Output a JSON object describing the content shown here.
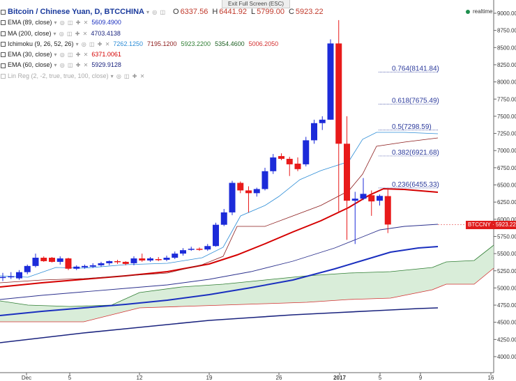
{
  "header": {
    "exit_fullscreen": "Exit Full Screen (ESC)",
    "title": "Bitcoin / Chinese Yuan, D, BTCCHINA",
    "ohlc": [
      {
        "k": "O",
        "v": "6337.56"
      },
      {
        "k": "H",
        "v": "6441.92"
      },
      {
        "k": "L",
        "v": "5799.00"
      },
      {
        "k": "C",
        "v": "5923.22"
      }
    ],
    "realtime": "realtime"
  },
  "indicators": [
    {
      "name": "EMA (89, close)",
      "values": [
        "5609.4900"
      ],
      "colors": [
        "#1a2fbf"
      ]
    },
    {
      "name": "MA (200, close)",
      "values": [
        "4703.4138"
      ],
      "colors": [
        "#1a237e"
      ]
    },
    {
      "name": "Ichimoku (9, 26, 52, 26)",
      "values": [
        "7262.1250",
        "7195.1200",
        "5923.2200",
        "5354.4600",
        "5006.2050"
      ],
      "colors": [
        "#2b8cd6",
        "#8b1a1a",
        "#2e7d32",
        "#1b5e20",
        "#d32f2f"
      ]
    },
    {
      "name": "EMA (30, close)",
      "values": [
        "6371.0061"
      ],
      "colors": [
        "#d50000"
      ]
    },
    {
      "name": "EMA (60, close)",
      "values": [
        "5929.9128"
      ],
      "colors": [
        "#1a237e"
      ]
    },
    {
      "name": "Lin Reg (2, -2, true, true, 100, close)",
      "values": [],
      "colors": []
    }
  ],
  "last_price_label": "BTCCNY · 5923.22",
  "colors": {
    "up": "#1c2bd9",
    "down": "#e81a1a",
    "fib": "#2b3a9c",
    "cloud": "#cfe8cf"
  },
  "chart_data": {
    "type": "candlestick",
    "title": "Bitcoin / Chinese Yuan, D, BTCCHINA",
    "ylim": [
      3800,
      9000
    ],
    "y_ticks": [
      4000,
      4250,
      4500,
      4750,
      5000,
      5250,
      5500,
      5750,
      6000,
      6250,
      6500,
      6750,
      7000,
      7250,
      7500,
      7750,
      8000,
      8250,
      8500,
      8750,
      9000
    ],
    "x_ticks": [
      "Dec",
      "5",
      "12",
      "19",
      "26",
      "2017",
      "5",
      "9",
      "16"
    ],
    "candles": [
      {
        "o": 5150,
        "h": 5220,
        "l": 5100,
        "c": 5160
      },
      {
        "o": 5160,
        "h": 5230,
        "l": 5130,
        "c": 5170
      },
      {
        "o": 5140,
        "h": 5260,
        "l": 5120,
        "c": 5230
      },
      {
        "o": 5230,
        "h": 5340,
        "l": 5200,
        "c": 5320
      },
      {
        "o": 5320,
        "h": 5500,
        "l": 5300,
        "c": 5440
      },
      {
        "o": 5440,
        "h": 5460,
        "l": 5380,
        "c": 5390
      },
      {
        "o": 5440,
        "h": 5450,
        "l": 5370,
        "c": 5380
      },
      {
        "o": 5380,
        "h": 5460,
        "l": 5340,
        "c": 5430
      },
      {
        "o": 5430,
        "h": 5440,
        "l": 5260,
        "c": 5280
      },
      {
        "o": 5280,
        "h": 5330,
        "l": 5260,
        "c": 5310
      },
      {
        "o": 5300,
        "h": 5340,
        "l": 5280,
        "c": 5320
      },
      {
        "o": 5310,
        "h": 5360,
        "l": 5290,
        "c": 5330
      },
      {
        "o": 5330,
        "h": 5380,
        "l": 5310,
        "c": 5360
      },
      {
        "o": 5360,
        "h": 5400,
        "l": 5330,
        "c": 5390
      },
      {
        "o": 5390,
        "h": 5410,
        "l": 5350,
        "c": 5380
      },
      {
        "o": 5380,
        "h": 5390,
        "l": 5330,
        "c": 5350
      },
      {
        "o": 5360,
        "h": 5460,
        "l": 5330,
        "c": 5430
      },
      {
        "o": 5430,
        "h": 5500,
        "l": 5380,
        "c": 5400
      },
      {
        "o": 5400,
        "h": 5450,
        "l": 5380,
        "c": 5430
      },
      {
        "o": 5420,
        "h": 5450,
        "l": 5390,
        "c": 5410
      },
      {
        "o": 5410,
        "h": 5470,
        "l": 5390,
        "c": 5440
      },
      {
        "o": 5440,
        "h": 5530,
        "l": 5420,
        "c": 5500
      },
      {
        "o": 5500,
        "h": 5580,
        "l": 5470,
        "c": 5550
      },
      {
        "o": 5560,
        "h": 5600,
        "l": 5540,
        "c": 5570
      },
      {
        "o": 5570,
        "h": 5590,
        "l": 5540,
        "c": 5560
      },
      {
        "o": 5560,
        "h": 5640,
        "l": 5540,
        "c": 5610
      },
      {
        "o": 5610,
        "h": 5950,
        "l": 5600,
        "c": 5920
      },
      {
        "o": 5920,
        "h": 6150,
        "l": 5900,
        "c": 6100
      },
      {
        "o": 6100,
        "h": 6560,
        "l": 6060,
        "c": 6530
      },
      {
        "o": 6530,
        "h": 6550,
        "l": 6380,
        "c": 6420
      },
      {
        "o": 6420,
        "h": 6480,
        "l": 6100,
        "c": 6380
      },
      {
        "o": 6380,
        "h": 6460,
        "l": 6330,
        "c": 6440
      },
      {
        "o": 6440,
        "h": 6750,
        "l": 6420,
        "c": 6700
      },
      {
        "o": 6700,
        "h": 6950,
        "l": 6660,
        "c": 6900
      },
      {
        "o": 6920,
        "h": 6960,
        "l": 6860,
        "c": 6880
      },
      {
        "o": 6880,
        "h": 6910,
        "l": 6630,
        "c": 6800
      },
      {
        "o": 6810,
        "h": 6900,
        "l": 6700,
        "c": 6730
      },
      {
        "o": 6800,
        "h": 7200,
        "l": 6770,
        "c": 7150
      },
      {
        "o": 7150,
        "h": 7450,
        "l": 7100,
        "c": 7400
      },
      {
        "o": 7400,
        "h": 7500,
        "l": 7300,
        "c": 7450
      },
      {
        "o": 7450,
        "h": 8620,
        "l": 7450,
        "c": 8560
      },
      {
        "o": 8560,
        "h": 8900,
        "l": 6100,
        "c": 7100
      },
      {
        "o": 7100,
        "h": 7500,
        "l": 5700,
        "c": 6270
      },
      {
        "o": 6270,
        "h": 6400,
        "l": 5640,
        "c": 6300
      },
      {
        "o": 6300,
        "h": 6600,
        "l": 6280,
        "c": 6370
      },
      {
        "o": 6350,
        "h": 6420,
        "l": 6050,
        "c": 6260
      },
      {
        "o": 6270,
        "h": 6360,
        "l": 6200,
        "c": 6340
      },
      {
        "o": 6337.56,
        "h": 6441.92,
        "l": 5799.0,
        "c": 5923.22
      }
    ],
    "fibonacci": [
      {
        "label": "0.764(8141.84)",
        "price": 8141.84
      },
      {
        "label": "0.618(7675.49)",
        "price": 7675.49
      },
      {
        "label": "0.5(7298.59)",
        "price": 7298.59
      },
      {
        "label": "0.382(6921.68)",
        "price": 6921.68
      },
      {
        "label": "0.236(6455.33)",
        "price": 6455.33
      }
    ],
    "last_price": 5923.22
  }
}
